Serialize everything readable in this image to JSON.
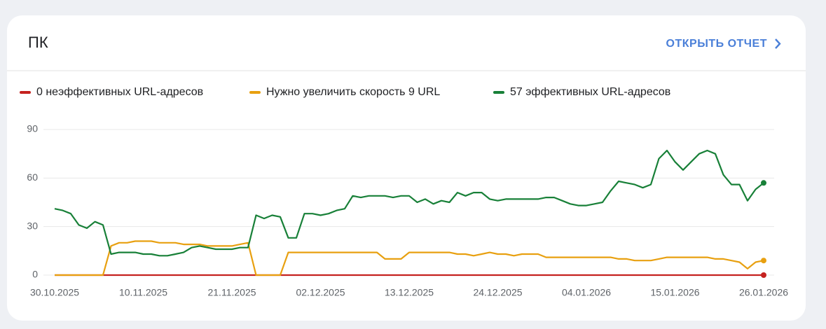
{
  "header": {
    "title": "ПК",
    "link": "ОТКРЫТЬ ОТЧЕТ"
  },
  "chart_data": {
    "type": "line",
    "categories": [
      "30.10.2025",
      null,
      null,
      null,
      null,
      null,
      null,
      null,
      null,
      null,
      null,
      "10.11.2025",
      null,
      null,
      null,
      null,
      null,
      null,
      null,
      null,
      null,
      null,
      "21.11.2025",
      null,
      null,
      null,
      null,
      null,
      null,
      null,
      null,
      null,
      null,
      "02.12.2025",
      null,
      null,
      null,
      null,
      null,
      null,
      null,
      null,
      null,
      null,
      "13.12.2025",
      null,
      null,
      null,
      null,
      null,
      null,
      null,
      null,
      null,
      null,
      "24.12.2025",
      null,
      null,
      null,
      null,
      null,
      null,
      null,
      null,
      null,
      null,
      "04.01.2026",
      null,
      null,
      null,
      null,
      null,
      null,
      null,
      null,
      null,
      null,
      "15.01.2026",
      null,
      null,
      null,
      null,
      null,
      null,
      null,
      null,
      null,
      null,
      "26.01.2026"
    ],
    "series": [
      {
        "name": "0 неэффективных URL-адресов",
        "color": "#c5221f",
        "values": [
          0,
          0,
          0,
          0,
          0,
          0,
          0,
          0,
          0,
          0,
          0,
          0,
          0,
          0,
          0,
          0,
          0,
          0,
          0,
          0,
          0,
          0,
          0,
          0,
          0,
          0,
          0,
          0,
          0,
          0,
          0,
          0,
          0,
          0,
          0,
          0,
          0,
          0,
          0,
          0,
          0,
          0,
          0,
          0,
          0,
          0,
          0,
          0,
          0,
          0,
          0,
          0,
          0,
          0,
          0,
          0,
          0,
          0,
          0,
          0,
          0,
          0,
          0,
          0,
          0,
          0,
          0,
          0,
          0,
          0,
          0,
          0,
          0,
          0,
          0,
          0,
          0,
          0,
          0,
          0,
          0,
          0,
          0,
          0,
          0,
          0,
          0,
          0,
          0
        ]
      },
      {
        "name": "Нужно увеличить скорость 9 URL",
        "color": "#e8a010",
        "values": [
          0,
          0,
          0,
          0,
          0,
          0,
          0,
          18,
          20,
          20,
          21,
          21,
          21,
          20,
          20,
          20,
          19,
          19,
          19,
          18,
          18,
          18,
          18,
          19,
          20,
          0,
          0,
          0,
          0,
          14,
          14,
          14,
          14,
          14,
          14,
          14,
          14,
          14,
          14,
          14,
          14,
          10,
          10,
          10,
          14,
          14,
          14,
          14,
          14,
          14,
          13,
          13,
          12,
          13,
          14,
          13,
          13,
          12,
          13,
          13,
          13,
          11,
          11,
          11,
          11,
          11,
          11,
          11,
          11,
          11,
          10,
          10,
          9,
          9,
          9,
          10,
          11,
          11,
          11,
          11,
          11,
          11,
          10,
          10,
          9,
          8,
          4,
          8,
          9
        ]
      },
      {
        "name": "57 эффективных URL-адресов",
        "color": "#188038",
        "values": [
          41,
          40,
          38,
          31,
          29,
          33,
          31,
          13,
          14,
          14,
          14,
          13,
          13,
          12,
          12,
          13,
          14,
          17,
          18,
          17,
          16,
          16,
          16,
          17,
          17,
          37,
          35,
          37,
          36,
          23,
          23,
          38,
          38,
          37,
          38,
          40,
          41,
          49,
          48,
          49,
          49,
          49,
          48,
          49,
          49,
          45,
          47,
          44,
          46,
          45,
          51,
          49,
          51,
          51,
          47,
          46,
          47,
          47,
          47,
          47,
          47,
          48,
          48,
          46,
          44,
          43,
          43,
          44,
          45,
          52,
          58,
          57,
          56,
          54,
          56,
          72,
          77,
          70,
          65,
          70,
          75,
          77,
          75,
          62,
          56,
          56,
          46,
          53,
          57
        ]
      }
    ],
    "ylim": [
      0,
      90
    ],
    "yticks": [
      0,
      30,
      60,
      90
    ],
    "grid": true
  }
}
